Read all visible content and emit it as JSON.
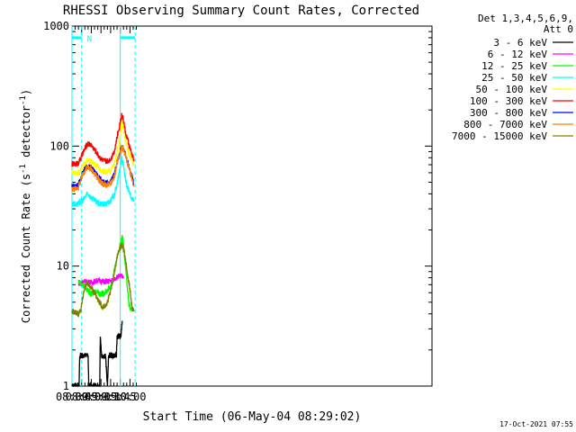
{
  "chart_data": {
    "type": "line",
    "title": "RHESSI Observing Summary Count Rates, Corrected",
    "xlabel": "Start Time (06-May-04 08:29:02)",
    "ylabel_main": "Corrected Count Rate (s",
    "ylabel_sup1": "-1",
    "ylabel_mid": " detector",
    "ylabel_sup2": "-1",
    "ylabel_end": ")",
    "yscale": "log",
    "ylim": [
      1,
      1000
    ],
    "xlim_min": [
      510,
      1069
    ],
    "x_ticks": [
      {
        "label": "08:30",
        "min": 510
      },
      {
        "label": "08:45",
        "min": 525
      },
      {
        "label": "09:00",
        "min": 540
      },
      {
        "label": "09:15",
        "min": 555
      },
      {
        "label": "09:30",
        "min": 570
      },
      {
        "label": "09:45",
        "min": 585
      },
      {
        "label": "10:00",
        "min": 600
      }
    ],
    "y_ticks": [
      {
        "label": "1",
        "value": 1
      },
      {
        "label": "10",
        "value": 10
      },
      {
        "label": "100",
        "value": 100
      },
      {
        "label": "1000",
        "value": 1000
      }
    ],
    "legend_header": [
      "Det 1,3,4,5,6,9,",
      "Att 0"
    ],
    "legend_position": "right",
    "series": [
      {
        "name": "3 - 6 keV",
        "color": "#000000",
        "points": [
          [
            510,
            1.0
          ],
          [
            521,
            1.0
          ],
          [
            522,
            1.8
          ],
          [
            525,
            1.8
          ],
          [
            535,
            1.8
          ],
          [
            536,
            1.0
          ],
          [
            553,
            1.0
          ],
          [
            554,
            2.6
          ],
          [
            556,
            1.8
          ],
          [
            562,
            1.8
          ],
          [
            565,
            1.0
          ],
          [
            567,
            1.8
          ],
          [
            579,
            1.8
          ],
          [
            580,
            2.6
          ],
          [
            584,
            2.6
          ],
          [
            586,
            2.6
          ],
          [
            588,
            3.5
          ]
        ]
      },
      {
        "name": "6 - 12 keV",
        "color": "#ff00ff",
        "points": [
          [
            520,
            7.2
          ],
          [
            530,
            7.4
          ],
          [
            540,
            7.3
          ],
          [
            550,
            7.6
          ],
          [
            560,
            7.4
          ],
          [
            570,
            7.5
          ],
          [
            578,
            8.0
          ],
          [
            584,
            8.2
          ],
          [
            590,
            8.2
          ]
        ]
      },
      {
        "name": "12 - 25 keV",
        "color": "#00ff00",
        "points": [
          [
            520,
            7.5
          ],
          [
            526,
            7.0
          ],
          [
            532,
            6.5
          ],
          [
            540,
            5.8
          ],
          [
            548,
            6.2
          ],
          [
            556,
            5.8
          ],
          [
            564,
            6.2
          ],
          [
            572,
            7.0
          ],
          [
            578,
            10.5
          ],
          [
            584,
            14.5
          ],
          [
            588,
            17.5
          ],
          [
            590,
            15.0
          ],
          [
            594,
            9.0
          ],
          [
            598,
            5.0
          ],
          [
            600,
            4.5
          ],
          [
            603,
            4.2
          ]
        ]
      },
      {
        "name": "25 - 50 keV",
        "color": "#00ffff",
        "points": [
          [
            510,
            33
          ],
          [
            516,
            33
          ],
          [
            520,
            33
          ],
          [
            524,
            34
          ],
          [
            528,
            36
          ],
          [
            532,
            39
          ],
          [
            535,
            40
          ],
          [
            540,
            37
          ],
          [
            546,
            35
          ],
          [
            552,
            33
          ],
          [
            558,
            33
          ],
          [
            564,
            33
          ],
          [
            570,
            35
          ],
          [
            576,
            40
          ],
          [
            580,
            48
          ],
          [
            584,
            62
          ],
          [
            587,
            82
          ],
          [
            590,
            68
          ],
          [
            593,
            52
          ],
          [
            598,
            42
          ],
          [
            603,
            37
          ],
          [
            606,
            35
          ]
        ]
      },
      {
        "name": "50 - 100 keV",
        "color": "#ffff00",
        "points": [
          [
            510,
            60
          ],
          [
            516,
            60
          ],
          [
            520,
            60
          ],
          [
            524,
            63
          ],
          [
            528,
            70
          ],
          [
            532,
            75
          ],
          [
            535,
            76
          ],
          [
            540,
            74
          ],
          [
            546,
            70
          ],
          [
            552,
            65
          ],
          [
            558,
            62
          ],
          [
            564,
            61
          ],
          [
            570,
            63
          ],
          [
            576,
            72
          ],
          [
            580,
            88
          ],
          [
            584,
            110
          ],
          [
            587,
            165
          ],
          [
            590,
            140
          ],
          [
            593,
            110
          ],
          [
            598,
            88
          ],
          [
            603,
            75
          ],
          [
            606,
            70
          ]
        ]
      },
      {
        "name": "100 - 300 keV",
        "color": "#ff0000",
        "points": [
          [
            510,
            71
          ],
          [
            516,
            71
          ],
          [
            520,
            73
          ],
          [
            524,
            80
          ],
          [
            528,
            90
          ],
          [
            532,
            100
          ],
          [
            535,
            105
          ],
          [
            540,
            102
          ],
          [
            546,
            92
          ],
          [
            552,
            82
          ],
          [
            558,
            76
          ],
          [
            564,
            74
          ],
          [
            570,
            78
          ],
          [
            576,
            92
          ],
          [
            580,
            118
          ],
          [
            584,
            150
          ],
          [
            587,
            185
          ],
          [
            590,
            165
          ],
          [
            593,
            130
          ],
          [
            598,
            105
          ],
          [
            603,
            85
          ],
          [
            606,
            78
          ]
        ]
      },
      {
        "name": "300 - 800 keV",
        "color": "#0000ff",
        "points": [
          [
            510,
            46
          ],
          [
            516,
            46
          ],
          [
            520,
            48
          ],
          [
            524,
            54
          ],
          [
            528,
            62
          ],
          [
            532,
            67
          ],
          [
            535,
            68
          ],
          [
            540,
            66
          ],
          [
            546,
            60
          ],
          [
            552,
            54
          ],
          [
            558,
            50
          ],
          [
            564,
            49
          ],
          [
            570,
            50
          ],
          [
            576,
            58
          ],
          [
            580,
            74
          ],
          [
            584,
            88
          ],
          [
            587,
            98
          ],
          [
            590,
            96
          ],
          [
            593,
            85
          ],
          [
            598,
            68
          ],
          [
            603,
            56
          ],
          [
            606,
            48
          ]
        ]
      },
      {
        "name": "800 - 7000 keV",
        "color": "#ff8000",
        "points": [
          [
            510,
            44
          ],
          [
            516,
            44
          ],
          [
            520,
            46
          ],
          [
            524,
            52
          ],
          [
            528,
            60
          ],
          [
            532,
            65
          ],
          [
            535,
            66
          ],
          [
            540,
            64
          ],
          [
            546,
            58
          ],
          [
            552,
            52
          ],
          [
            558,
            48
          ],
          [
            564,
            47
          ],
          [
            570,
            48
          ],
          [
            576,
            56
          ],
          [
            580,
            72
          ],
          [
            584,
            86
          ],
          [
            587,
            96
          ],
          [
            590,
            94
          ],
          [
            593,
            83
          ],
          [
            598,
            66
          ],
          [
            603,
            54
          ],
          [
            606,
            46
          ]
        ]
      },
      {
        "name": "7000 - 15000 keV",
        "color": "#808000",
        "points": [
          [
            510,
            4.2
          ],
          [
            516,
            4.1
          ],
          [
            520,
            4.0
          ],
          [
            524,
            4.4
          ],
          [
            528,
            6.0
          ],
          [
            532,
            7.2
          ],
          [
            536,
            7.0
          ],
          [
            540,
            6.6
          ],
          [
            546,
            5.8
          ],
          [
            552,
            5.0
          ],
          [
            558,
            4.5
          ],
          [
            564,
            4.8
          ],
          [
            570,
            6.3
          ],
          [
            576,
            9.0
          ],
          [
            580,
            12.0
          ],
          [
            584,
            14.0
          ],
          [
            588,
            15.0
          ],
          [
            591,
            13.0
          ],
          [
            595,
            9.5
          ],
          [
            599,
            7.0
          ],
          [
            603,
            4.6
          ],
          [
            606,
            4.2
          ]
        ]
      }
    ],
    "attenuator_markers": {
      "min": [
        510,
        525,
        585,
        608
      ],
      "states": [
        {
          "from": 510,
          "to": 525,
          "level": 800
        },
        {
          "from": 585,
          "to": 608,
          "level": 800
        }
      ],
      "label": "N"
    }
  },
  "footer_date": "17-Oct-2021 07:55"
}
